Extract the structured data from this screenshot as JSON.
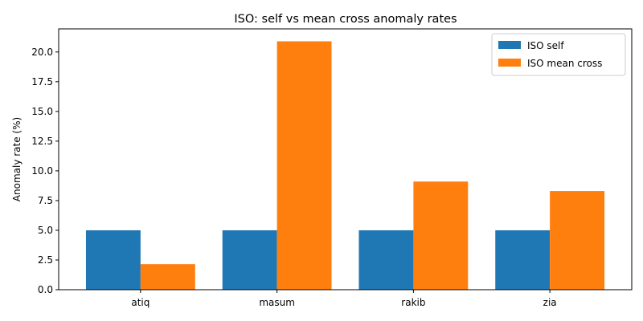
{
  "chart_data": {
    "type": "bar",
    "title": "ISO: self vs mean cross anomaly rates",
    "xlabel": "",
    "ylabel": "Anomaly rate (%)",
    "categories": [
      "atiq",
      "masum",
      "rakib",
      "zia"
    ],
    "series": [
      {
        "name": "ISO self",
        "values": [
          5.0,
          5.0,
          5.0,
          5.0
        ],
        "color": "#1f77b4"
      },
      {
        "name": "ISO mean cross",
        "values": [
          2.15,
          20.9,
          9.1,
          8.3
        ],
        "color": "#ff7f0e"
      }
    ],
    "ylim": [
      0,
      21.945
    ],
    "yticks": [
      0.0,
      2.5,
      5.0,
      7.5,
      10.0,
      12.5,
      15.0,
      17.5,
      20.0
    ],
    "ytick_labels": [
      "0.0",
      "2.5",
      "5.0",
      "7.5",
      "10.0",
      "12.5",
      "15.0",
      "17.5",
      "20.0"
    ],
    "grid": false,
    "legend_position": "top-right"
  }
}
